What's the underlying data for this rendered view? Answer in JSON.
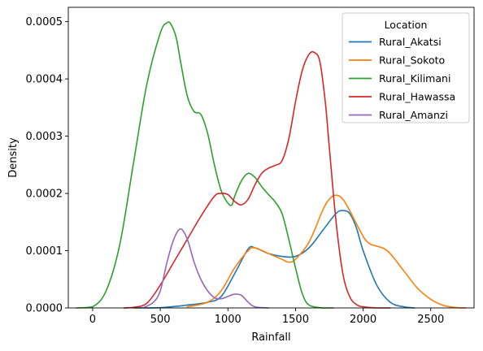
{
  "chart_data": {
    "type": "line",
    "xlabel": "Rainfall",
    "ylabel": "Density",
    "xlim": [
      -180,
      2820
    ],
    "ylim": [
      0,
      0.000525
    ],
    "xticks": [
      0,
      500,
      1000,
      1500,
      2000,
      2500
    ],
    "xtick_labels": [
      "0",
      "500",
      "1000",
      "1500",
      "2000",
      "2500"
    ],
    "yticks": [
      0,
      0.0001,
      0.0002,
      0.0003,
      0.0004,
      0.0005
    ],
    "ytick_labels": [
      "0.0000",
      "0.0001",
      "0.0002",
      "0.0003",
      "0.0004",
      "0.0005"
    ],
    "grid": false,
    "legend": {
      "title": "Location",
      "placement": "top-right"
    },
    "series": [
      {
        "name": "Rural_Akatsi",
        "color": "#1f77b4",
        "x": [
          300,
          500,
          700,
          850,
          950,
          1050,
          1150,
          1200,
          1300,
          1400,
          1500,
          1600,
          1700,
          1800,
          1850,
          1900,
          1950,
          2000,
          2100,
          2200,
          2300,
          2380
        ],
        "y": [
          0,
          5e-07,
          5e-06,
          1e-05,
          2e-05,
          6e-05,
          0.000103,
          0.000105,
          9.5e-05,
          9e-05,
          9e-05,
          0.000105,
          0.000135,
          0.000165,
          0.00017,
          0.000165,
          0.00014,
          0.0001,
          4e-05,
          1e-05,
          2e-06,
          0
        ]
      },
      {
        "name": "Rural_Sokoto",
        "color": "#ff7f0e",
        "x": [
          700,
          850,
          950,
          1050,
          1150,
          1200,
          1300,
          1400,
          1450,
          1500,
          1600,
          1700,
          1750,
          1800,
          1850,
          1900,
          2000,
          2050,
          2100,
          2150,
          2200,
          2300,
          2400,
          2500,
          2600,
          2700,
          2760
        ],
        "y": [
          2e-06,
          1e-05,
          3e-05,
          7e-05,
          0.0001,
          0.000105,
          9.5e-05,
          8.5e-05,
          8e-05,
          8.5e-05,
          0.000115,
          0.00017,
          0.00019,
          0.000197,
          0.00019,
          0.00017,
          0.000125,
          0.000112,
          0.000108,
          0.000104,
          9.5e-05,
          6.5e-05,
          3.5e-05,
          1.5e-05,
          4e-06,
          5e-07,
          0
        ]
      },
      {
        "name": "Rural_Kilimani",
        "color": "#2ca02c",
        "x": [
          -120,
          0,
          100,
          200,
          300,
          400,
          500,
          550,
          580,
          620,
          650,
          700,
          750,
          800,
          850,
          900,
          950,
          1000,
          1030,
          1050,
          1100,
          1150,
          1200,
          1250,
          1300,
          1350,
          1400,
          1450,
          1500,
          1550,
          1600,
          1700,
          1780
        ],
        "y": [
          0,
          2e-06,
          3e-05,
          0.00011,
          0.00025,
          0.00039,
          0.00048,
          0.000498,
          0.000495,
          0.00047,
          0.00043,
          0.00037,
          0.000343,
          0.000338,
          0.000305,
          0.00025,
          0.000205,
          0.000183,
          0.00018,
          0.000195,
          0.000222,
          0.000235,
          0.000228,
          0.000212,
          0.000198,
          0.000185,
          0.000165,
          0.00012,
          7e-05,
          2.5e-05,
          5e-06,
          0,
          0
        ]
      },
      {
        "name": "Rural_Hawassa",
        "color": "#d62728",
        "x": [
          230,
          300,
          400,
          500,
          600,
          700,
          800,
          900,
          950,
          1000,
          1050,
          1100,
          1150,
          1200,
          1250,
          1300,
          1350,
          1400,
          1450,
          1500,
          1550,
          1600,
          1640,
          1680,
          1720,
          1750,
          1800,
          1850,
          1900,
          1950,
          2000,
          2100,
          2200
        ],
        "y": [
          0,
          1e-06,
          8e-06,
          4e-05,
          8e-05,
          0.00012,
          0.00016,
          0.000195,
          0.0002,
          0.000198,
          0.000186,
          0.00018,
          0.00019,
          0.000215,
          0.000235,
          0.000244,
          0.000249,
          0.000257,
          0.000295,
          0.00036,
          0.000415,
          0.000443,
          0.000446,
          0.00043,
          0.00036,
          0.00028,
          0.00015,
          6e-05,
          2e-05,
          6e-06,
          2e-06,
          0,
          0
        ]
      },
      {
        "name": "Rural_Amanzi",
        "color": "#9467bd",
        "x": [
          380,
          450,
          500,
          550,
          600,
          650,
          700,
          750,
          800,
          850,
          900,
          950,
          1000,
          1050,
          1100,
          1150,
          1200,
          1300
        ],
        "y": [
          1e-06,
          1e-05,
          3e-05,
          8e-05,
          0.00012,
          0.000138,
          0.00012,
          8e-05,
          5e-05,
          3e-05,
          1.8e-05,
          1.6e-05,
          2e-05,
          2.4e-05,
          2.2e-05,
          1e-05,
          2e-06,
          0
        ]
      }
    ]
  }
}
